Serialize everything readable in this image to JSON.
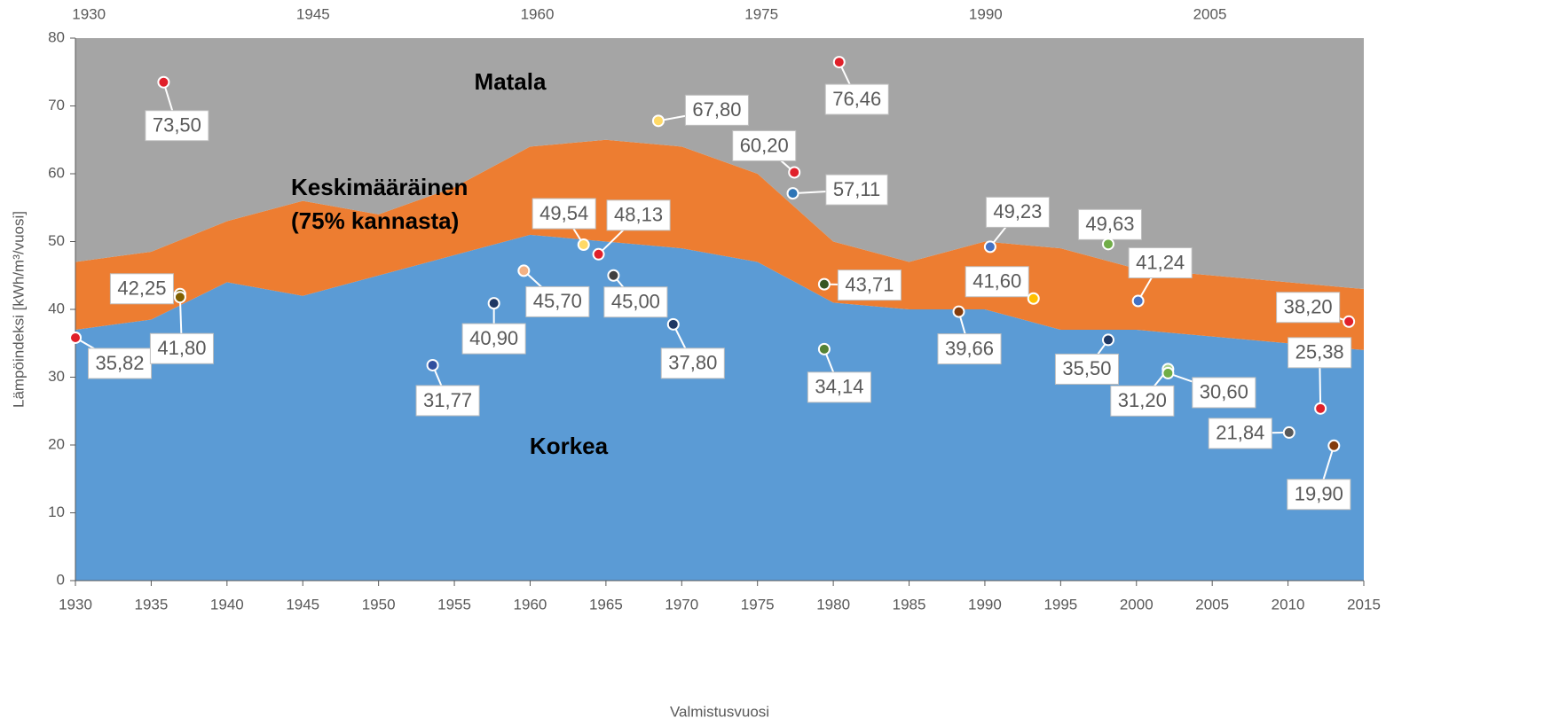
{
  "chart_data": [
    {
      "type": "area",
      "xlabel": "Valmistusvuosi",
      "ylabel": "Lämpöindeksi [kWh/m³/vuosi]",
      "x": [
        1930,
        1935,
        1940,
        1945,
        1950,
        1955,
        1960,
        1965,
        1970,
        1975,
        1980,
        1985,
        1990,
        1995,
        2000,
        2005,
        2010,
        2015
      ],
      "xlim": [
        1930,
        2015
      ],
      "xticks": [
        1930,
        1935,
        1940,
        1945,
        1950,
        1955,
        1960,
        1965,
        1970,
        1975,
        1980,
        1985,
        1990,
        1995,
        2000,
        2005,
        2010,
        2015
      ],
      "ylim": [
        0,
        80
      ],
      "yticks": [
        0,
        10,
        20,
        30,
        40,
        50,
        60,
        70,
        80
      ],
      "series": [
        {
          "label": [
            "Matala"
          ],
          "color": "#5b9bd5",
          "values": [
            37,
            38.5,
            44,
            42,
            45,
            48,
            51,
            50,
            49,
            47,
            41,
            40,
            40,
            37,
            37,
            36,
            35,
            34
          ]
        },
        {
          "label": [
            "Keskimääräinen",
            "(75% kannasta)"
          ],
          "color": "#ed7d31",
          "values": [
            10,
            10,
            9,
            14,
            9,
            10,
            13,
            15,
            15,
            13,
            9,
            7,
            10,
            12,
            9,
            9,
            9,
            9
          ]
        },
        {
          "label": [
            "Korkea"
          ],
          "color": "#a5a5a5",
          "values": [
            33,
            31.5,
            27,
            24,
            26,
            22,
            16,
            15,
            16,
            20,
            30,
            33,
            30,
            31,
            34,
            35,
            36,
            37
          ]
        }
      ]
    },
    {
      "type": "scatter",
      "xlim": [
        1929.1,
        2015.3
      ],
      "xticks": [
        1930,
        1945,
        1960,
        1975,
        1990,
        2005
      ],
      "ylim": [
        0,
        80
      ],
      "x": [
        1929.1,
        1935.0,
        1936.1,
        1936.1,
        1953.0,
        1957.1,
        1959.1,
        1963.1,
        1964.1,
        1965.1,
        1968.1,
        1969.1,
        1977.2,
        1977.1,
        1980.2,
        1979.2,
        1979.2,
        1988.2,
        1990.3,
        1993.2,
        1998.2,
        1998.2,
        2000.2,
        2002.2,
        2002.2,
        2010.3,
        2012.4,
        2013.3,
        2014.3
      ],
      "values": [
        35.82,
        73.5,
        42.25,
        41.8,
        31.77,
        40.9,
        45.7,
        49.54,
        48.13,
        45.0,
        67.8,
        37.8,
        60.2,
        57.11,
        76.46,
        43.71,
        34.14,
        39.66,
        49.23,
        41.6,
        35.5,
        49.63,
        41.24,
        31.2,
        30.6,
        21.84,
        25.38,
        19.9,
        38.2
      ],
      "value_labels": [
        "35,82",
        "73,50",
        "42,25",
        "41,80",
        "31,77",
        "40,90",
        "45,70",
        "49,54",
        "48,13",
        "45,00",
        "67,80",
        "37,80",
        "60,20",
        "57,11",
        "76,46",
        "43,71",
        "34,14",
        "39,66",
        "49,23",
        "41,60",
        "35,50",
        "49,63",
        "41,24",
        "31,20",
        "30,60",
        "21,84",
        "25,38",
        "19,90",
        "38,20"
      ],
      "colors": [
        "#e0202a",
        "#e0202a",
        "#7f6000",
        "#806000",
        "#2f4f9f",
        "#1f3864",
        "#f4b183",
        "#ffd966",
        "#e0202a",
        "#404040",
        "#ffd966",
        "#1f3864",
        "#e0202a",
        "#2e75b6",
        "#e0202a",
        "#375623",
        "#548235",
        "#843c0c",
        "#4472c4",
        "#ffc000",
        "#1f3864",
        "#70ad47",
        "#4472c4",
        "#a9d18e",
        "#70ad47",
        "#595959",
        "#e0202a",
        "#843c0c",
        "#e0202a"
      ]
    }
  ]
}
